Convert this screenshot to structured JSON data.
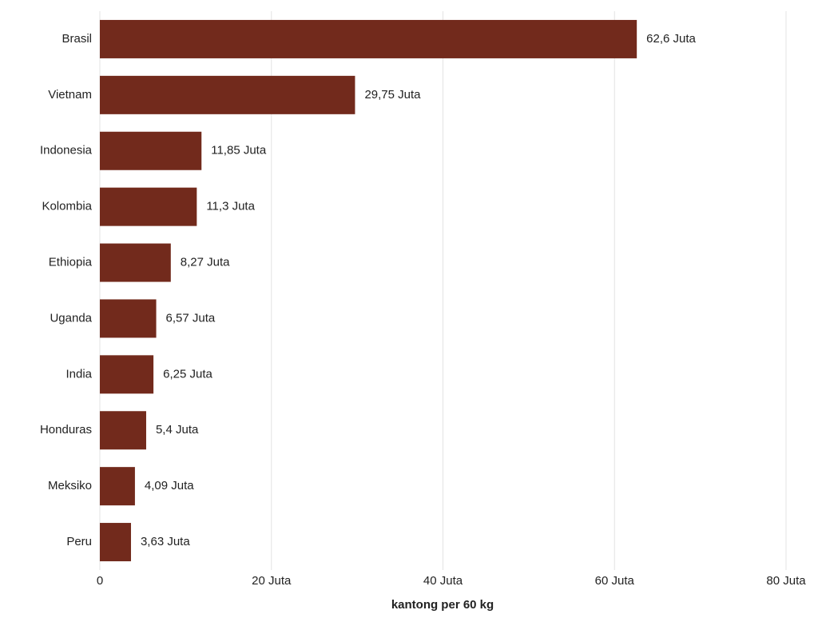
{
  "chart_data": {
    "type": "bar",
    "orientation": "horizontal",
    "x_label": "kantong per 60 kg",
    "categories": [
      "Brasil",
      "Vietnam",
      "Indonesia",
      "Kolombia",
      "Ethiopia",
      "Uganda",
      "India",
      "Honduras",
      "Meksiko",
      "Peru"
    ],
    "values": [
      62.6,
      29.75,
      11.85,
      11.3,
      8.27,
      6.57,
      6.25,
      5.4,
      4.09,
      3.63
    ],
    "value_labels": [
      "62,6 Juta",
      "29,75 Juta",
      "11,85 Juta",
      "11,3 Juta",
      "8,27 Juta",
      "6,57 Juta",
      "6,25 Juta",
      "5,4 Juta",
      "4,09 Juta",
      "3,63 Juta"
    ],
    "color": "#722a1c",
    "xlim": [
      0,
      80
    ],
    "xticks": [
      0,
      {
        "value": 20,
        "label": "20 Juta"
      },
      {
        "value": 40,
        "label": "40 Juta"
      },
      {
        "value": 60,
        "label": "60 Juta"
      },
      {
        "value": 80,
        "label": "80 Juta"
      }
    ],
    "grid": true
  }
}
